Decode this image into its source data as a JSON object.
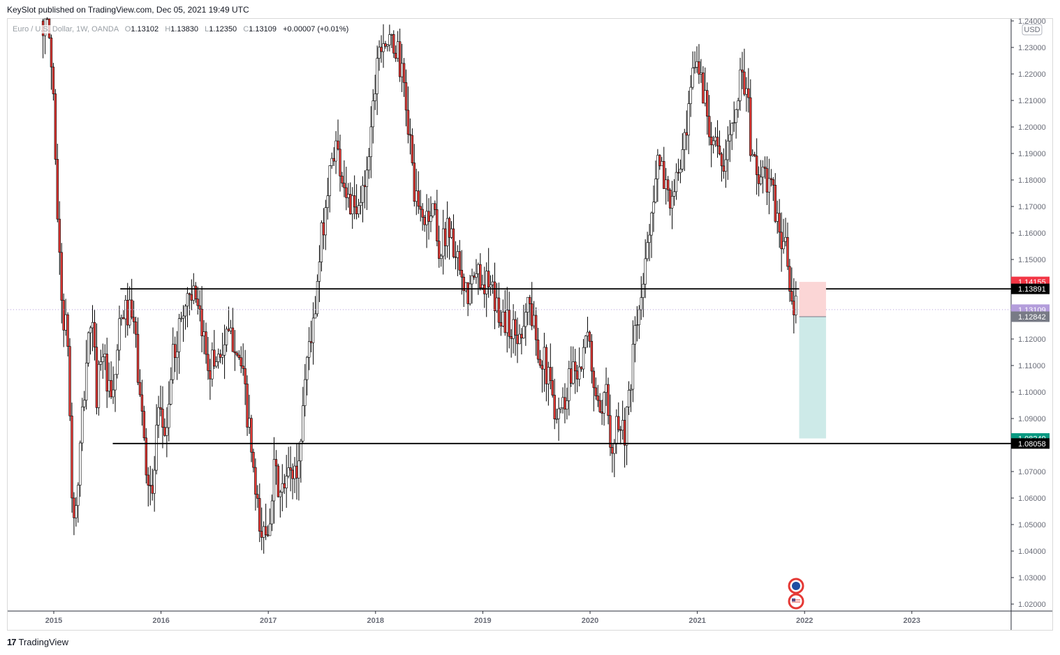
{
  "header": {
    "publisher": "KeySlot published on TradingView.com, Dec 05, 2021 19:49 UTC"
  },
  "legend": {
    "symbol": "Euro / U.S. Dollar, 1W, OANDA",
    "open_label": "O",
    "open": "1.13102",
    "high_label": "H",
    "high": "1.13830",
    "low_label": "L",
    "low": "1.12350",
    "close_label": "C",
    "close": "1.13109",
    "change": "+0.00007 (+0.01%)"
  },
  "currency_badge": "USD",
  "footer": {
    "brand": "TradingView"
  },
  "colors": {
    "up": "#ffffff",
    "down": "#e53935",
    "wick": "#000000",
    "stop_zone": "#fbd6d6",
    "target_zone": "#cdeae8",
    "badge_red": "#f23645",
    "badge_black": "#000000",
    "badge_purple": "#b39ddb",
    "badge_gray": "#787b86",
    "badge_teal": "#089981"
  },
  "chart_data": {
    "type": "candlestick",
    "instrument": "Euro / U.S. Dollar",
    "timeframe": "1W",
    "source": "OANDA",
    "ylim": [
      1.015,
      1.24
    ],
    "y_ticks": [
      "1.24000",
      "1.23000",
      "1.22000",
      "1.21000",
      "1.20000",
      "1.19000",
      "1.18000",
      "1.17000",
      "1.16000",
      "1.15000",
      "1.14000",
      "1.13000",
      "1.12000",
      "1.11000",
      "1.10000",
      "1.09000",
      "1.08000",
      "1.07000",
      "1.06000",
      "1.05000",
      "1.04000",
      "1.03000",
      "1.02000"
    ],
    "x_ticks": [
      "2015",
      "2016",
      "2017",
      "2018",
      "2019",
      "2020",
      "2021",
      "2022",
      "2023"
    ],
    "price_path": [
      [
        2014.9,
        1.24
      ],
      [
        2014.95,
        1.238
      ],
      [
        2015.0,
        1.21
      ],
      [
        2015.04,
        1.16
      ],
      [
        2015.08,
        1.13
      ],
      [
        2015.13,
        1.12
      ],
      [
        2015.17,
        1.06
      ],
      [
        2015.2,
        1.05
      ],
      [
        2015.25,
        1.08
      ],
      [
        2015.3,
        1.11
      ],
      [
        2015.35,
        1.13
      ],
      [
        2015.4,
        1.1
      ],
      [
        2015.45,
        1.12
      ],
      [
        2015.5,
        1.1
      ],
      [
        2015.55,
        1.095
      ],
      [
        2015.6,
        1.12
      ],
      [
        2015.65,
        1.13
      ],
      [
        2015.7,
        1.13
      ],
      [
        2015.75,
        1.125
      ],
      [
        2015.8,
        1.1
      ],
      [
        2015.87,
        1.07
      ],
      [
        2015.92,
        1.06
      ],
      [
        2015.97,
        1.09
      ],
      [
        2016.05,
        1.085
      ],
      [
        2016.1,
        1.11
      ],
      [
        2016.2,
        1.13
      ],
      [
        2016.28,
        1.14
      ],
      [
        2016.33,
        1.13
      ],
      [
        2016.4,
        1.12
      ],
      [
        2016.45,
        1.11
      ],
      [
        2016.55,
        1.115
      ],
      [
        2016.62,
        1.12
      ],
      [
        2016.7,
        1.12
      ],
      [
        2016.78,
        1.1
      ],
      [
        2016.85,
        1.075
      ],
      [
        2016.88,
        1.06
      ],
      [
        2016.93,
        1.045
      ],
      [
        2017.0,
        1.05
      ],
      [
        2017.05,
        1.07
      ],
      [
        2017.12,
        1.06
      ],
      [
        2017.2,
        1.07
      ],
      [
        2017.28,
        1.07
      ],
      [
        2017.33,
        1.1
      ],
      [
        2017.38,
        1.12
      ],
      [
        2017.43,
        1.125
      ],
      [
        2017.5,
        1.16
      ],
      [
        2017.55,
        1.175
      ],
      [
        2017.62,
        1.195
      ],
      [
        2017.7,
        1.18
      ],
      [
        2017.77,
        1.17
      ],
      [
        2017.83,
        1.165
      ],
      [
        2017.9,
        1.18
      ],
      [
        2017.96,
        1.2
      ],
      [
        2018.02,
        1.23
      ],
      [
        2018.07,
        1.235
      ],
      [
        2018.13,
        1.23
      ],
      [
        2018.2,
        1.23
      ],
      [
        2018.28,
        1.21
      ],
      [
        2018.33,
        1.19
      ],
      [
        2018.38,
        1.17
      ],
      [
        2018.45,
        1.165
      ],
      [
        2018.55,
        1.17
      ],
      [
        2018.6,
        1.15
      ],
      [
        2018.67,
        1.165
      ],
      [
        2018.75,
        1.15
      ],
      [
        2018.83,
        1.135
      ],
      [
        2018.9,
        1.14
      ],
      [
        2018.96,
        1.145
      ],
      [
        2019.05,
        1.14
      ],
      [
        2019.15,
        1.13
      ],
      [
        2019.25,
        1.125
      ],
      [
        2019.33,
        1.12
      ],
      [
        2019.42,
        1.135
      ],
      [
        2019.5,
        1.12
      ],
      [
        2019.58,
        1.11
      ],
      [
        2019.67,
        1.095
      ],
      [
        2019.75,
        1.095
      ],
      [
        2019.83,
        1.11
      ],
      [
        2019.92,
        1.11
      ],
      [
        2019.98,
        1.12
      ],
      [
        2020.05,
        1.1
      ],
      [
        2020.1,
        1.085
      ],
      [
        2020.15,
        1.1
      ],
      [
        2020.2,
        1.08
      ],
      [
        2020.25,
        1.09
      ],
      [
        2020.32,
        1.085
      ],
      [
        2020.38,
        1.1
      ],
      [
        2020.42,
        1.125
      ],
      [
        2020.47,
        1.13
      ],
      [
        2020.52,
        1.15
      ],
      [
        2020.57,
        1.17
      ],
      [
        2020.63,
        1.185
      ],
      [
        2020.7,
        1.18
      ],
      [
        2020.77,
        1.17
      ],
      [
        2020.83,
        1.185
      ],
      [
        2020.9,
        1.195
      ],
      [
        2020.96,
        1.22
      ],
      [
        2021.0,
        1.225
      ],
      [
        2021.05,
        1.215
      ],
      [
        2021.12,
        1.2
      ],
      [
        2021.18,
        1.195
      ],
      [
        2021.23,
        1.18
      ],
      [
        2021.28,
        1.19
      ],
      [
        2021.33,
        1.205
      ],
      [
        2021.38,
        1.215
      ],
      [
        2021.43,
        1.22
      ],
      [
        2021.47,
        1.21
      ],
      [
        2021.5,
        1.19
      ],
      [
        2021.55,
        1.185
      ],
      [
        2021.6,
        1.18
      ],
      [
        2021.67,
        1.18
      ],
      [
        2021.72,
        1.17
      ],
      [
        2021.77,
        1.16
      ],
      [
        2021.82,
        1.155
      ],
      [
        2021.85,
        1.145
      ],
      [
        2021.88,
        1.13
      ],
      [
        2021.92,
        1.1311
      ]
    ],
    "horizontal_lines": [
      {
        "price": 1.13891,
        "x_start": 2015.62,
        "x_end": "axis"
      },
      {
        "price": 1.08058,
        "x_start": 2015.55,
        "x_end": "axis"
      }
    ],
    "position_tool": {
      "x_start": 2021.95,
      "x_end": 2022.2,
      "stop": 1.14155,
      "entry": 1.12842,
      "target": 1.08249
    },
    "current_price_line": 1.13109,
    "price_badges": [
      {
        "value": "1.14155",
        "price": 1.14155,
        "color": "#f23645"
      },
      {
        "value": "1.13891",
        "price": 1.13891,
        "color": "#000000"
      },
      {
        "value": "1.13109",
        "price": 1.13109,
        "color": "#b39ddb"
      },
      {
        "value": "1.12842",
        "price": 1.12842,
        "color": "#787b86"
      },
      {
        "value": "1.08249",
        "price": 1.08249,
        "color": "#089981"
      },
      {
        "value": "1.08058",
        "price": 1.08058,
        "color": "#000000"
      }
    ]
  }
}
